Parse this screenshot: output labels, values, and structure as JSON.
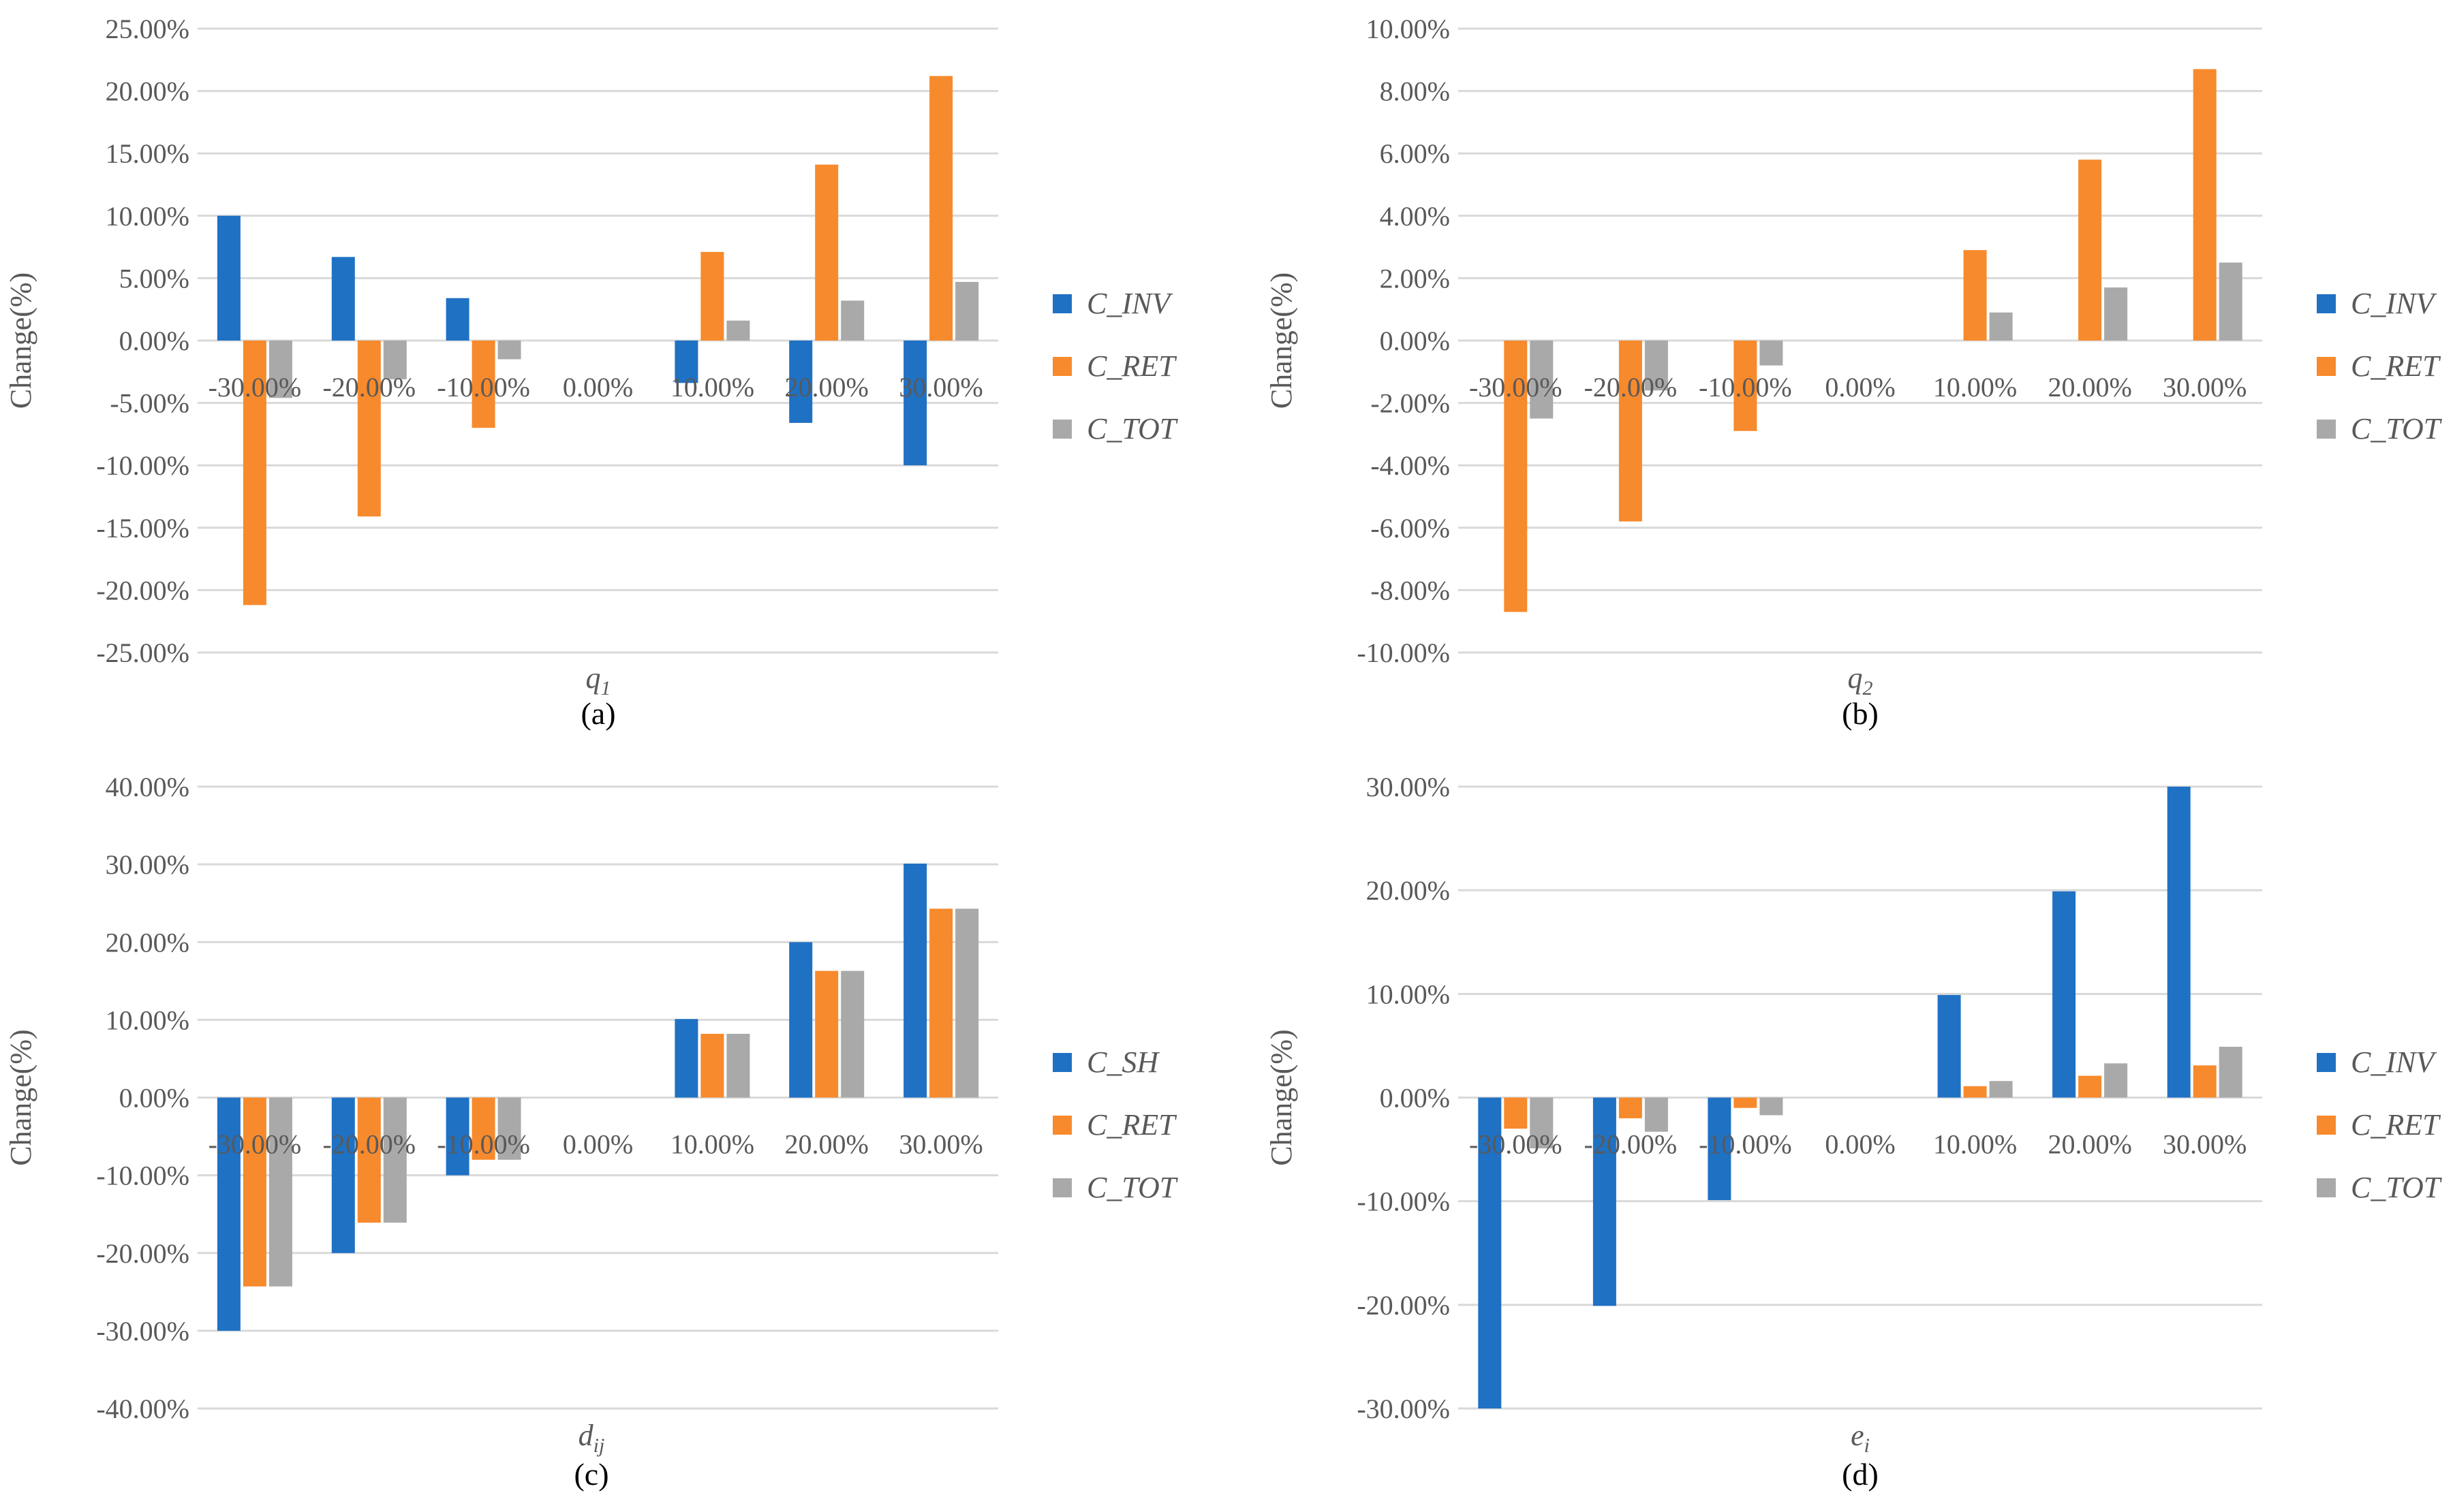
{
  "colors": {
    "series1": "#1f71c4",
    "series2": "#f78a2c",
    "series3": "#a9a9a9",
    "grid": "#d9d9d9",
    "text": "#595959"
  },
  "chart_data": [
    {
      "type": "bar",
      "panel_label": "(a)",
      "xlabel": "q",
      "xlabel_sub": "1",
      "ylabel": "Change(%)",
      "ylim": [
        -25,
        25
      ],
      "yticks": [
        -25,
        -20,
        -15,
        -10,
        -5,
        0,
        5,
        10,
        15,
        20,
        25
      ],
      "ytick_labels": [
        "-25.00%",
        "-20.00%",
        "-15.00%",
        "-10.00%",
        "-5.00%",
        "0.00%",
        "5.00%",
        "10.00%",
        "15.00%",
        "20.00%",
        "25.00%"
      ],
      "categories": [
        "-30.00%",
        "-20.00%",
        "-10.00%",
        "0.00%",
        "10.00%",
        "20.00%",
        "30.00%"
      ],
      "series": [
        {
          "name": "C_INV",
          "values": [
            10.0,
            6.7,
            3.4,
            0,
            -3.4,
            -6.6,
            -10.0
          ]
        },
        {
          "name": "C_RET",
          "values": [
            -21.2,
            -14.1,
            -7.0,
            0,
            7.1,
            14.1,
            21.2
          ]
        },
        {
          "name": "C_TOT",
          "values": [
            -4.6,
            -3.1,
            -1.5,
            0,
            1.6,
            3.2,
            4.7
          ]
        }
      ]
    },
    {
      "type": "bar",
      "panel_label": "(b)",
      "xlabel": "q",
      "xlabel_sub": "2",
      "ylabel": "Change(%)",
      "ylim": [
        -10,
        10
      ],
      "yticks": [
        -10,
        -8,
        -6,
        -4,
        -2,
        0,
        2,
        4,
        6,
        8,
        10
      ],
      "ytick_labels": [
        "-10.00%",
        "-8.00%",
        "-6.00%",
        "-4.00%",
        "-2.00%",
        "0.00%",
        "2.00%",
        "4.00%",
        "6.00%",
        "8.00%",
        "10.00%"
      ],
      "categories": [
        "-30.00%",
        "-20.00%",
        "-10.00%",
        "0.00%",
        "10.00%",
        "20.00%",
        "30.00%"
      ],
      "series": [
        {
          "name": "C_INV",
          "values": [
            0,
            0,
            0,
            0,
            0,
            0,
            0
          ]
        },
        {
          "name": "C_RET",
          "values": [
            -8.7,
            -5.8,
            -2.9,
            0,
            2.9,
            5.8,
            8.7
          ]
        },
        {
          "name": "C_TOT",
          "values": [
            -2.5,
            -1.6,
            -0.8,
            0,
            0.9,
            1.7,
            2.5
          ]
        }
      ]
    },
    {
      "type": "bar",
      "panel_label": "(c)",
      "xlabel": "d",
      "xlabel_sub": "ij",
      "ylabel": "Change(%)",
      "ylim": [
        -40,
        40
      ],
      "yticks": [
        -40,
        -30,
        -20,
        -10,
        0,
        10,
        20,
        30,
        40
      ],
      "ytick_labels": [
        "-40.00%",
        "-30.00%",
        "-20.00%",
        "-10.00%",
        "0.00%",
        "10.00%",
        "20.00%",
        "30.00%",
        "40.00%"
      ],
      "categories": [
        "-30.00%",
        "-20.00%",
        "-10.00%",
        "0.00%",
        "10.00%",
        "20.00%",
        "30.00%"
      ],
      "series": [
        {
          "name": "C_SH",
          "values": [
            -30.0,
            -20.0,
            -10.0,
            0,
            10.1,
            20.0,
            30.1
          ]
        },
        {
          "name": "C_RET",
          "values": [
            -24.3,
            -16.1,
            -8.0,
            0,
            8.2,
            16.3,
            24.3
          ]
        },
        {
          "name": "C_TOT",
          "values": [
            -24.3,
            -16.1,
            -8.0,
            0,
            8.2,
            16.3,
            24.3
          ]
        }
      ]
    },
    {
      "type": "bar",
      "panel_label": "(d)",
      "xlabel": "e",
      "xlabel_sub": "i",
      "ylabel": "Change(%)",
      "ylim": [
        -30,
        30
      ],
      "yticks": [
        -30,
        -20,
        -10,
        0,
        10,
        20,
        30
      ],
      "ytick_labels": [
        "-30.00%",
        "-20.00%",
        "-10.00%",
        "0.00%",
        "10.00%",
        "20.00%",
        "30.00%"
      ],
      "categories": [
        "-30.00%",
        "-20.00%",
        "-10.00%",
        "0.00%",
        "10.00%",
        "20.00%",
        "30.00%"
      ],
      "series": [
        {
          "name": "C_INV",
          "values": [
            -30.0,
            -20.1,
            -9.9,
            0,
            9.9,
            19.9,
            30.0
          ]
        },
        {
          "name": "C_RET",
          "values": [
            -3.0,
            -2.0,
            -1.0,
            0,
            1.1,
            2.1,
            3.1
          ]
        },
        {
          "name": "C_TOT",
          "values": [
            -4.9,
            -3.3,
            -1.7,
            0,
            1.6,
            3.3,
            4.9
          ]
        }
      ]
    }
  ]
}
